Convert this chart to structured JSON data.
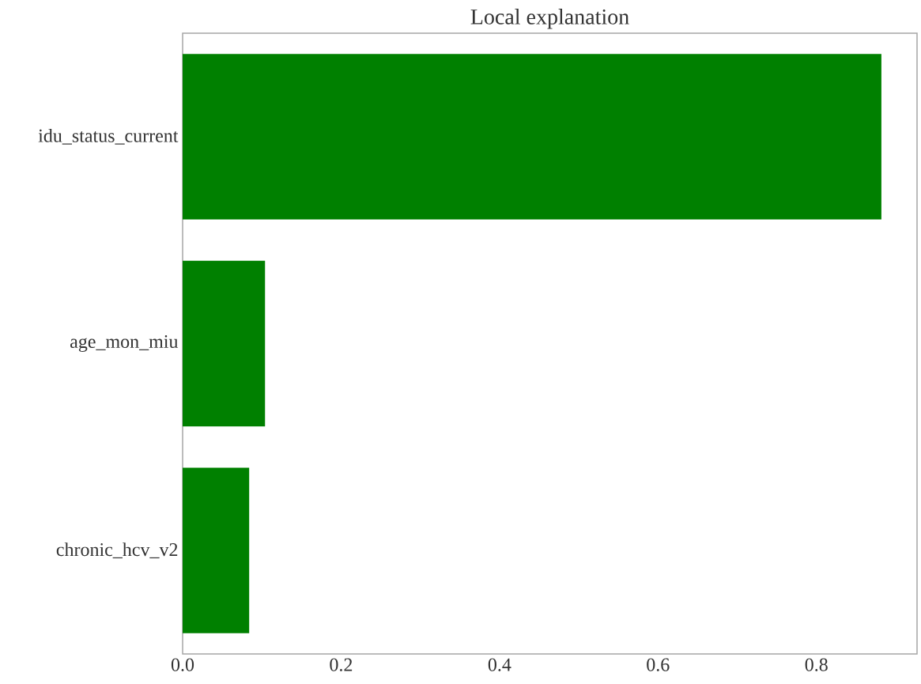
{
  "chart_data": {
    "type": "bar",
    "orientation": "horizontal",
    "title": "Local explanation",
    "categories": [
      "idu_status_current",
      "age_mon_miu",
      "chronic_hcv_v2"
    ],
    "values": [
      0.882,
      0.104,
      0.084
    ],
    "color": "#008000",
    "xlim": [
      0,
      0.927
    ],
    "xticks": [
      {
        "value": 0,
        "label": "0.0"
      },
      0.2,
      0.4,
      0.6,
      0.8
    ],
    "grid": false
  }
}
